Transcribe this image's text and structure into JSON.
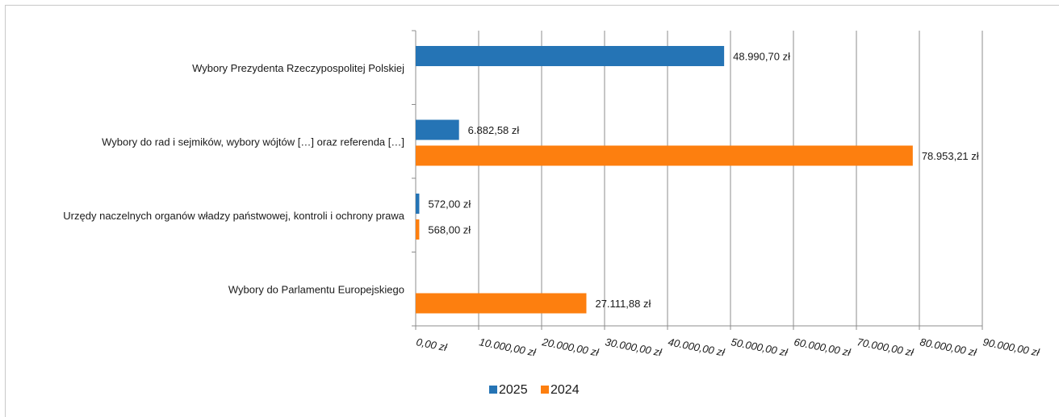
{
  "chart_data": {
    "type": "bar",
    "orientation": "horizontal",
    "title": "",
    "xlabel": "",
    "ylabel": "",
    "xlim": [
      0,
      90000
    ],
    "tick_step": 10000,
    "tick_labels": [
      "0,00 zł",
      "10.000,00 zł",
      "20.000,00 zł",
      "30.000,00 zł",
      "40.000,00 zł",
      "50.000,00 zł",
      "60.000,00 zł",
      "70.000,00 zł",
      "80.000,00 zł",
      "90.000,00 zł"
    ],
    "grid": "vertical",
    "legend_position": "bottom",
    "categories": [
      "Wybory Prezydenta Rzeczypospolitej Polskiej",
      "Wybory do rad i sejmików, wybory wójtów […] oraz referenda […]",
      "Urzędy naczelnych organów władzy państwowej, kontroli i ochrony prawa",
      "Wybory do Parlamentu Europejskiego"
    ],
    "series": [
      {
        "name": "2025",
        "color": "#2574b5",
        "values": [
          48990.7,
          6882.58,
          572.0,
          null
        ],
        "labels": [
          "48.990,70 zł",
          "6.882,58 zł",
          "572,00 zł",
          ""
        ]
      },
      {
        "name": "2024",
        "color": "#fd7f0f",
        "values": [
          null,
          78953.21,
          568.0,
          27111.88
        ],
        "labels": [
          "",
          "78.953,21 zł",
          "568,00 zł",
          "27.111,88 zł"
        ]
      }
    ]
  }
}
